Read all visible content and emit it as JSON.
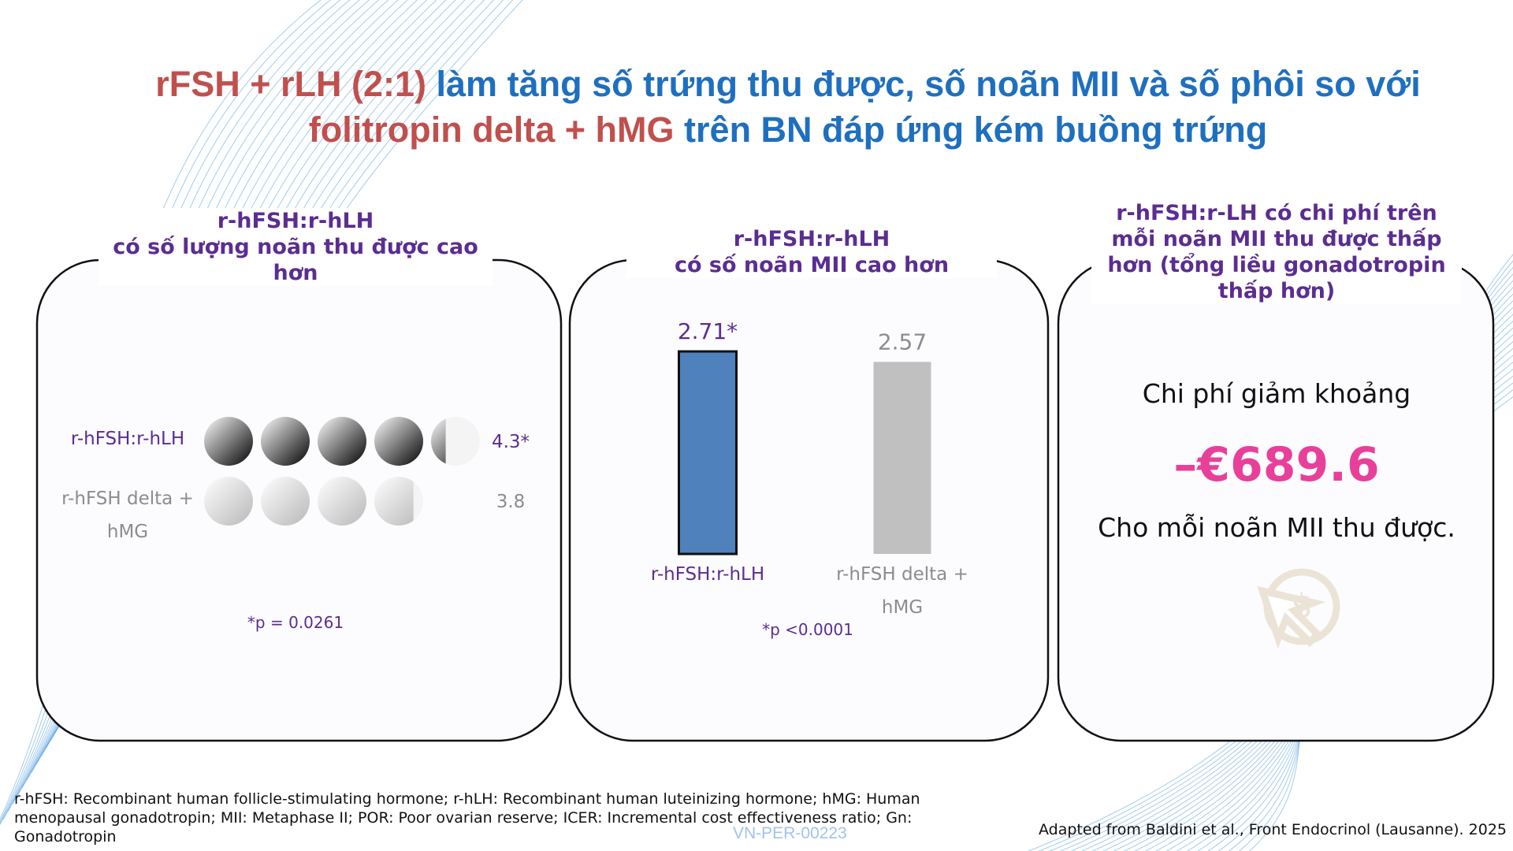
{
  "title": {
    "part1": "rFSH + rLH (2:1)",
    "part2": "làm tăng số trứng thu được, số noãn MII và số phôi so với",
    "part3": "folitropin delta + hMG",
    "part4": "trên BN đáp ứng kém buồng trứng"
  },
  "chart_data": [
    {
      "type": "pictogram",
      "title": [
        "r-hFSH:r-hLH",
        "có số lượng noãn thu được cao hơn"
      ],
      "categories": [
        "r-hFSH:r-hLH",
        "r-hFSH delta + hMG"
      ],
      "values": [
        4.3,
        3.8
      ],
      "value_labels": [
        "4.3*",
        "3.8"
      ],
      "colors": [
        "#000000",
        "#b8b8b8"
      ],
      "annotation": "*p = 0.0261"
    },
    {
      "type": "bar",
      "title": [
        "r-hFSH:r-hLH",
        "có số noãn MII cao hơn"
      ],
      "categories": [
        "r-hFSH:r-hLH",
        "r-hFSH delta + hMG"
      ],
      "values": [
        2.71,
        2.57
      ],
      "value_labels": [
        "2.71*",
        "2.57"
      ],
      "colors": [
        "#4f81bd",
        "#c0c0c0"
      ],
      "annotation": "*p <0.0001"
    }
  ],
  "cost": {
    "title": "r-hFSH:r-LH có chi phí trên mỗi noãn MII thu được thấp hơn (tổng liều gonadotropin thấp hơn)",
    "line1": "Chi phí giảm khoảng",
    "amount": "–€689.6",
    "line2": "Cho mỗi noãn MII thu được."
  },
  "footnote": "r-hFSH: Recombinant human follicle-stimulating hormone; r-hLH: Recombinant human luteinizing hormone; hMG: Human menopausal gonadotropin; MII: Metaphase II; POR: Poor ovarian reserve; ICER: Incremental cost effectiveness ratio; Gn: Gonadotropin",
  "code": "VN-PER-00223",
  "source": "Adapted from Baldini et al., Front Endocrinol (Lausanne). 2025"
}
